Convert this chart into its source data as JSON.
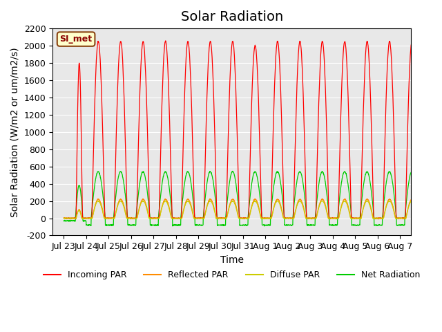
{
  "title": "Solar Radiation",
  "xlabel": "Time",
  "ylabel": "Solar Radiation (W/m2 or um/m2/s)",
  "ylim": [
    -200,
    2200
  ],
  "yticks": [
    -200,
    0,
    200,
    400,
    600,
    800,
    1000,
    1200,
    1400,
    1600,
    1800,
    2000,
    2200
  ],
  "xtick_labels": [
    "Jul 23",
    "Jul 24",
    "Jul 25",
    "Jul 26",
    "Jul 27",
    "Jul 28",
    "Jul 29",
    "Jul 30",
    "Jul 31",
    "Aug 1",
    "Aug 2",
    "Aug 3",
    "Aug 4",
    "Aug 5",
    "Aug 6",
    "Aug 7"
  ],
  "legend_label": "SI_met",
  "series": {
    "incoming_par": {
      "color": "#ff0000",
      "label": "Incoming PAR",
      "peak": 2050,
      "first_peak": 1800
    },
    "reflected_par": {
      "color": "#ff8c00",
      "label": "Reflected PAR",
      "peak": 220
    },
    "diffuse_par": {
      "color": "#cccc00",
      "label": "Diffuse PAR",
      "peak": 200
    },
    "net_radiation": {
      "color": "#00cc00",
      "label": "Net Radiation",
      "peak": 540,
      "night": -80
    }
  },
  "bg_color": "#e8e8e8",
  "fig_bg": "#ffffff",
  "n_days": 16,
  "title_fontsize": 14,
  "axis_fontsize": 10,
  "tick_fontsize": 9
}
